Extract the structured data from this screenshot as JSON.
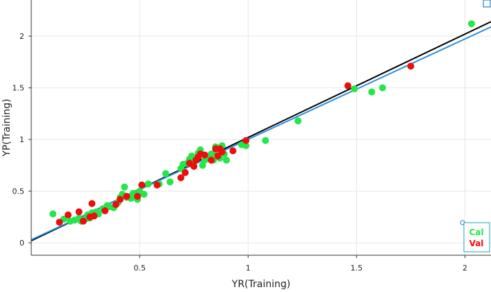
{
  "chart_data": {
    "type": "scatter",
    "xlabel": "YR(Training)",
    "ylabel": "YP(Training)",
    "xlim": [
      0,
      2.12
    ],
    "ylim": [
      -0.12,
      2.35
    ],
    "x_ticks": [
      0.5,
      1,
      1.5,
      2
    ],
    "x_tick_labels": [
      "0.5",
      "1",
      "1.5",
      "2"
    ],
    "y_ticks": [
      0,
      0.5,
      1,
      1.5,
      2
    ],
    "y_tick_labels": [
      "0",
      "0.5",
      "1",
      "1.5",
      "2"
    ],
    "grid": true,
    "legend_position": "bottom-right",
    "series": [
      {
        "name": "Cal",
        "color": "#22e64a",
        "points": [
          [
            0.1,
            0.28
          ],
          [
            0.15,
            0.23
          ],
          [
            0.18,
            0.21
          ],
          [
            0.2,
            0.22
          ],
          [
            0.22,
            0.24
          ],
          [
            0.23,
            0.21
          ],
          [
            0.25,
            0.23
          ],
          [
            0.26,
            0.27
          ],
          [
            0.27,
            0.24
          ],
          [
            0.28,
            0.29
          ],
          [
            0.3,
            0.3
          ],
          [
            0.31,
            0.28
          ],
          [
            0.33,
            0.33
          ],
          [
            0.35,
            0.36
          ],
          [
            0.36,
            0.35
          ],
          [
            0.38,
            0.34
          ],
          [
            0.4,
            0.39
          ],
          [
            0.41,
            0.44
          ],
          [
            0.42,
            0.47
          ],
          [
            0.43,
            0.54
          ],
          [
            0.44,
            0.44
          ],
          [
            0.46,
            0.43
          ],
          [
            0.47,
            0.48
          ],
          [
            0.48,
            0.46
          ],
          [
            0.49,
            0.42
          ],
          [
            0.5,
            0.5
          ],
          [
            0.51,
            0.56
          ],
          [
            0.52,
            0.47
          ],
          [
            0.54,
            0.57
          ],
          [
            0.59,
            0.57
          ],
          [
            0.62,
            0.67
          ],
          [
            0.64,
            0.59
          ],
          [
            0.69,
            0.72
          ],
          [
            0.7,
            0.76
          ],
          [
            0.72,
            0.77
          ],
          [
            0.73,
            0.81
          ],
          [
            0.74,
            0.84
          ],
          [
            0.75,
            0.79
          ],
          [
            0.76,
            0.82
          ],
          [
            0.77,
            0.87
          ],
          [
            0.78,
            0.9
          ],
          [
            0.79,
            0.75
          ],
          [
            0.8,
            0.8
          ],
          [
            0.81,
            0.84
          ],
          [
            0.83,
            0.86
          ],
          [
            0.84,
            0.8
          ],
          [
            0.85,
            0.93
          ],
          [
            0.86,
            0.88
          ],
          [
            0.87,
            0.82
          ],
          [
            0.88,
            0.94
          ],
          [
            0.89,
            0.86
          ],
          [
            0.9,
            0.8
          ],
          [
            0.97,
            0.95
          ],
          [
            0.99,
            0.94
          ],
          [
            1.08,
            0.99
          ],
          [
            1.23,
            1.18
          ],
          [
            1.49,
            1.49
          ],
          [
            1.57,
            1.46
          ],
          [
            1.62,
            1.5
          ],
          [
            2.03,
            2.12
          ]
        ]
      },
      {
        "name": "Val",
        "color": "#ee0d0d",
        "points": [
          [
            0.13,
            0.2
          ],
          [
            0.17,
            0.27
          ],
          [
            0.22,
            0.3
          ],
          [
            0.24,
            0.21
          ],
          [
            0.27,
            0.25
          ],
          [
            0.28,
            0.38
          ],
          [
            0.29,
            0.26
          ],
          [
            0.34,
            0.31
          ],
          [
            0.39,
            0.37
          ],
          [
            0.41,
            0.42
          ],
          [
            0.44,
            0.45
          ],
          [
            0.49,
            0.45
          ],
          [
            0.51,
            0.56
          ],
          [
            0.58,
            0.56
          ],
          [
            0.69,
            0.63
          ],
          [
            0.71,
            0.68
          ],
          [
            0.73,
            0.77
          ],
          [
            0.75,
            0.74
          ],
          [
            0.76,
            0.8
          ],
          [
            0.77,
            0.83
          ],
          [
            0.78,
            0.86
          ],
          [
            0.8,
            0.85
          ],
          [
            0.83,
            0.8
          ],
          [
            0.85,
            0.91
          ],
          [
            0.86,
            0.84
          ],
          [
            0.87,
            0.91
          ],
          [
            0.88,
            0.88
          ],
          [
            0.93,
            0.89
          ],
          [
            0.99,
            0.99
          ],
          [
            1.46,
            1.52
          ],
          [
            1.75,
            1.71
          ]
        ]
      }
    ],
    "lines": [
      {
        "role": "identity",
        "color": "#000000",
        "from": [
          0,
          0.02
        ],
        "to": [
          2.12,
          2.14
        ]
      },
      {
        "role": "fit",
        "color": "#2e8fe0",
        "from": [
          0,
          0.03
        ],
        "to": [
          2.12,
          2.09
        ]
      }
    ]
  }
}
